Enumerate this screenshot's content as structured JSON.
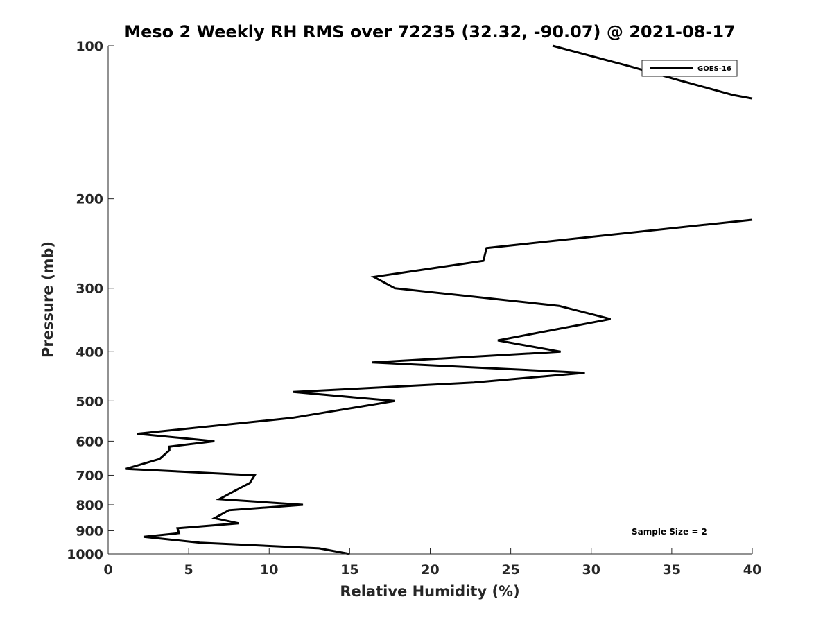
{
  "chart_data": {
    "type": "line",
    "title": "Meso 2 Weekly RH RMS over 72235 (32.32, -90.07) @ 2021-08-17",
    "xlabel": "Relative Humidity (%)",
    "ylabel": "Pressure (mb)",
    "xlim": [
      0,
      40
    ],
    "ylim": [
      100,
      1000
    ],
    "y_reversed": true,
    "y_scale": "log",
    "xticks": [
      "0",
      "5",
      "10",
      "15",
      "20",
      "25",
      "30",
      "35",
      "40"
    ],
    "yticks": [
      "100",
      "200",
      "300",
      "400",
      "500",
      "600",
      "700",
      "800",
      "900",
      "1000"
    ],
    "grid": false,
    "legend_position": "top-right",
    "annotation": "Sample Size = 2",
    "series": [
      {
        "name": "GOES-16",
        "color": "#000000",
        "points": [
          {
            "x": 15.0,
            "y": 1000
          },
          {
            "x": 13.1,
            "y": 975
          },
          {
            "x": 5.7,
            "y": 950
          },
          {
            "x": 2.2,
            "y": 925
          },
          {
            "x": 4.4,
            "y": 910
          },
          {
            "x": 4.3,
            "y": 890
          },
          {
            "x": 8.1,
            "y": 870
          },
          {
            "x": 6.6,
            "y": 850
          },
          {
            "x": 7.2,
            "y": 830
          },
          {
            "x": 7.5,
            "y": 820
          },
          {
            "x": 12.1,
            "y": 800
          },
          {
            "x": 6.9,
            "y": 780
          },
          {
            "x": 7.9,
            "y": 750
          },
          {
            "x": 8.8,
            "y": 725
          },
          {
            "x": 9.1,
            "y": 700
          },
          {
            "x": 1.1,
            "y": 680
          },
          {
            "x": 3.2,
            "y": 650
          },
          {
            "x": 3.8,
            "y": 625
          },
          {
            "x": 3.8,
            "y": 615
          },
          {
            "x": 6.6,
            "y": 600
          },
          {
            "x": 1.8,
            "y": 580
          },
          {
            "x": 11.4,
            "y": 540
          },
          {
            "x": 17.8,
            "y": 500
          },
          {
            "x": 11.5,
            "y": 480
          },
          {
            "x": 22.7,
            "y": 460
          },
          {
            "x": 29.6,
            "y": 440
          },
          {
            "x": 16.4,
            "y": 420
          },
          {
            "x": 28.1,
            "y": 400
          },
          {
            "x": 24.2,
            "y": 380
          },
          {
            "x": 31.2,
            "y": 345
          },
          {
            "x": 28.0,
            "y": 325
          },
          {
            "x": 17.8,
            "y": 300
          },
          {
            "x": 16.5,
            "y": 285
          },
          {
            "x": 23.3,
            "y": 265
          },
          {
            "x": 23.5,
            "y": 250
          },
          {
            "x": 37.1,
            "y": 225
          },
          {
            "x": 40.0,
            "y": 220
          }
        ]
      },
      {
        "name": "",
        "color": "#000000",
        "points": [
          {
            "x": 27.6,
            "y": 100
          },
          {
            "x": 32.5,
            "y": 110
          },
          {
            "x": 35.5,
            "y": 117
          },
          {
            "x": 38.8,
            "y": 125
          },
          {
            "x": 40.0,
            "y": 127
          }
        ]
      }
    ]
  }
}
